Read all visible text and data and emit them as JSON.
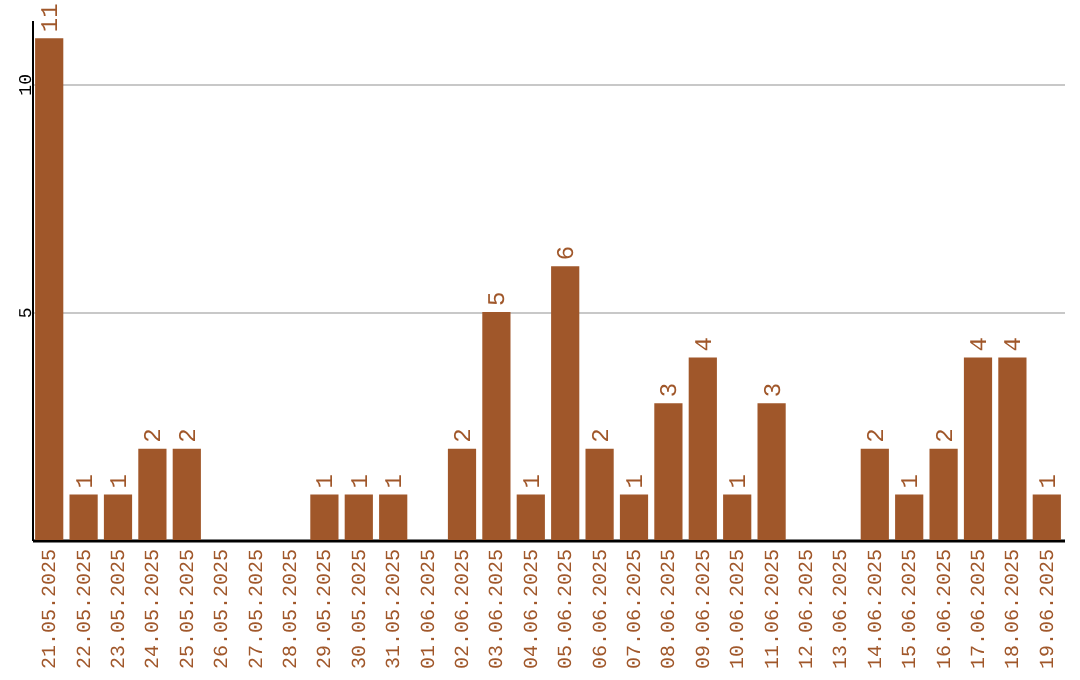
{
  "chart_data": {
    "type": "bar",
    "categories": [
      "21.05.2025",
      "22.05.2025",
      "23.05.2025",
      "24.05.2025",
      "25.05.2025",
      "26.05.2025",
      "27.05.2025",
      "28.05.2025",
      "29.05.2025",
      "30.05.2025",
      "31.05.2025",
      "01.06.2025",
      "02.06.2025",
      "03.06.2025",
      "04.06.2025",
      "05.06.2025",
      "06.06.2025",
      "07.06.2025",
      "08.06.2025",
      "09.06.2025",
      "10.06.2025",
      "11.06.2025",
      "12.06.2025",
      "13.06.2025",
      "14.06.2025",
      "15.06.2025",
      "16.06.2025",
      "17.06.2025",
      "18.06.2025",
      "19.06.2025"
    ],
    "values": [
      11,
      1,
      1,
      2,
      2,
      0,
      0,
      0,
      1,
      1,
      1,
      0,
      2,
      5,
      1,
      6,
      2,
      1,
      3,
      4,
      1,
      3,
      0,
      0,
      2,
      1,
      2,
      4,
      4,
      1
    ],
    "value_labels": [
      "11",
      "1",
      "1",
      "2",
      "2",
      null,
      null,
      null,
      "1",
      "1",
      "1",
      null,
      "2",
      "5",
      "1",
      "6",
      "2",
      "1",
      "3",
      "4",
      "1",
      "3",
      null,
      null,
      "2",
      "1",
      "2",
      "4",
      "4",
      "1"
    ],
    "color": "#a0572a",
    "ylim": [
      0,
      11.4
    ],
    "yticks": [
      5,
      10
    ],
    "grid": "y"
  }
}
